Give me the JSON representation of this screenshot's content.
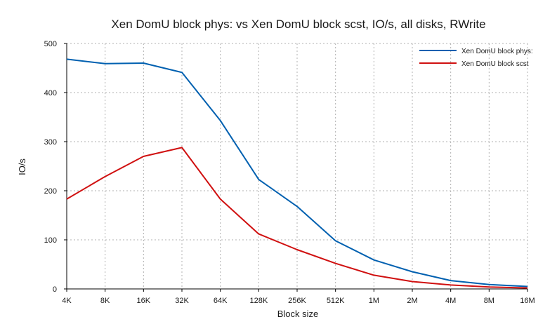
{
  "chart_data": {
    "type": "line",
    "title": "Xen DomU block phys: vs Xen DomU block scst, IO/s, all disks, RWrite",
    "xlabel": "Block size",
    "ylabel": "IO/s",
    "categories": [
      "4K",
      "8K",
      "16K",
      "32K",
      "64K",
      "128K",
      "256K",
      "512K",
      "1M",
      "2M",
      "4M",
      "8M",
      "16M"
    ],
    "ylim": [
      0,
      500
    ],
    "yticks": [
      0,
      100,
      200,
      300,
      400,
      500
    ],
    "grid": true,
    "legend_position": "top-right",
    "series": [
      {
        "name": "Xen DomU block phys:",
        "color": "#0060b0",
        "values": [
          468,
          459,
          460,
          441,
          343,
          223,
          168,
          98,
          59,
          35,
          17,
          9,
          5
        ]
      },
      {
        "name": "Xen DomU block scst",
        "color": "#d01010",
        "values": [
          183,
          229,
          270,
          288,
          183,
          112,
          80,
          52,
          28,
          15,
          8,
          4,
          2
        ]
      }
    ]
  }
}
